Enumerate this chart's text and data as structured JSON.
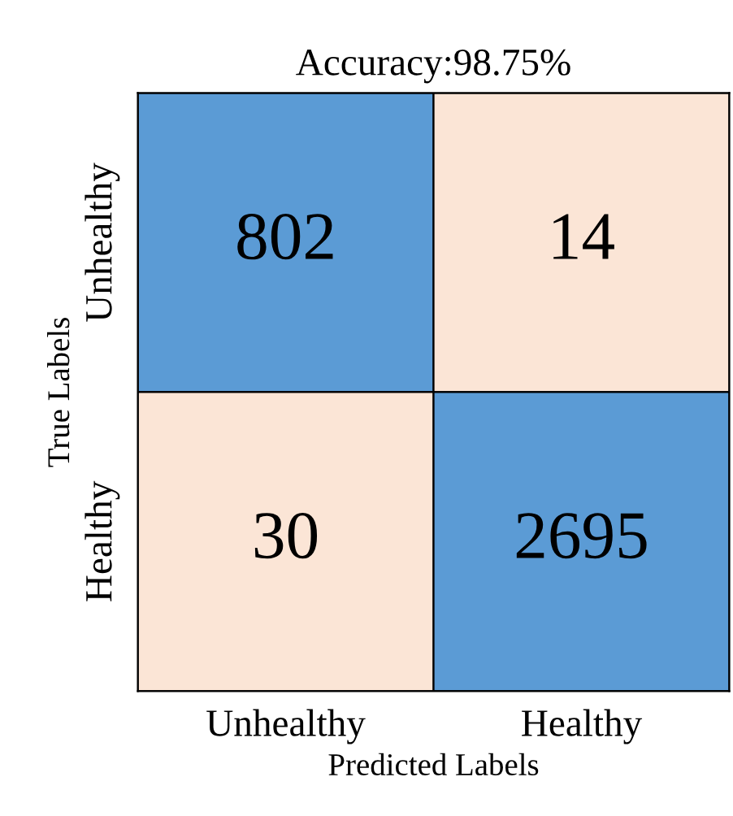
{
  "chart_data": {
    "type": "heatmap",
    "title": "Accuracy:98.75%",
    "xlabel": "Predicted Labels",
    "ylabel": "True Labels",
    "categories": [
      "Unhealthy",
      "Healthy"
    ],
    "y_categories": [
      "Unhealthy",
      "Healthy"
    ],
    "cells": [
      [
        802,
        14
      ],
      [
        30,
        2695
      ]
    ],
    "colors": [
      [
        "#5b9bd5",
        "#fbe5d6"
      ],
      [
        "#fbe5d6",
        "#5b9bd5"
      ]
    ],
    "data_labels": true
  }
}
